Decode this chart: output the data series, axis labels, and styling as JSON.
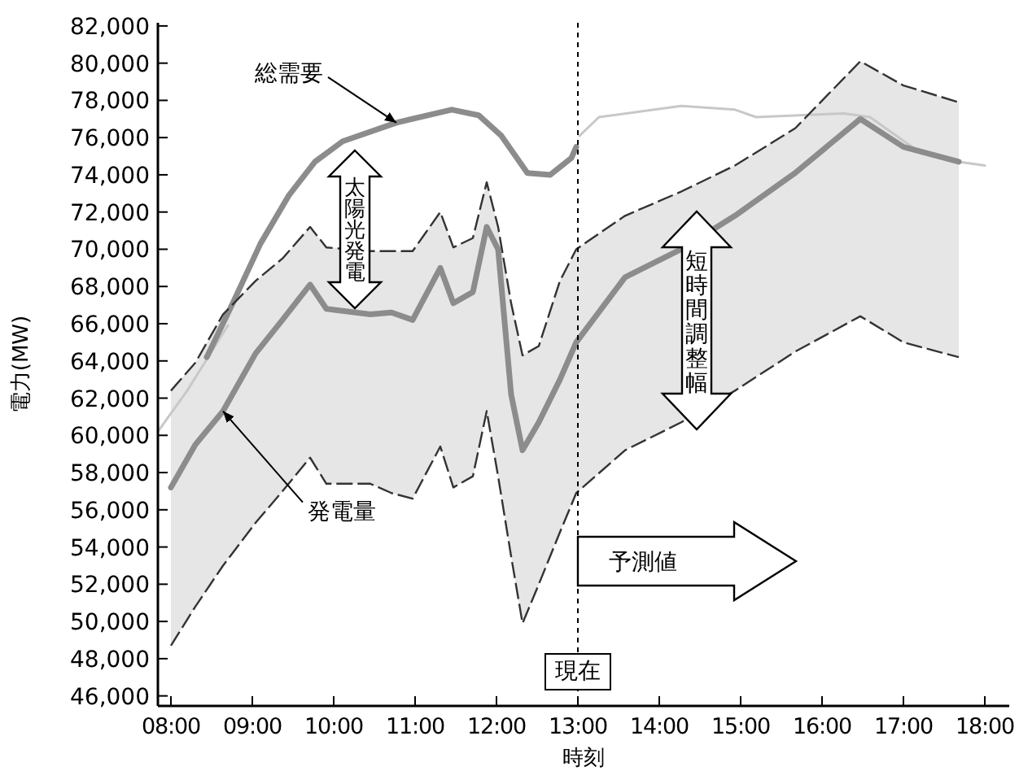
{
  "chart_data": {
    "type": "line",
    "xlabel": "時刻",
    "ylabel": "電力(MW)",
    "xlim": [
      7.84,
      18.3
    ],
    "ylim": [
      45460,
      82170
    ],
    "xticks": [
      {
        "value": 8,
        "label": "08:00"
      },
      {
        "value": 9,
        "label": "09:00"
      },
      {
        "value": 10,
        "label": "10:00"
      },
      {
        "value": 11,
        "label": "11:00"
      },
      {
        "value": 12,
        "label": "12:00"
      },
      {
        "value": 13,
        "label": "13:00"
      },
      {
        "value": 14,
        "label": "14:00"
      },
      {
        "value": 15,
        "label": "15:00"
      },
      {
        "value": 16,
        "label": "16:00"
      },
      {
        "value": 17,
        "label": "17:00"
      },
      {
        "value": 18,
        "label": "18:00"
      }
    ],
    "yticks": [
      {
        "value": 46000,
        "label": "46,000"
      },
      {
        "value": 48000,
        "label": "48,000"
      },
      {
        "value": 50000,
        "label": "50,000"
      },
      {
        "value": 52000,
        "label": "52,000"
      },
      {
        "value": 54000,
        "label": "54,000"
      },
      {
        "value": 56000,
        "label": "56,000"
      },
      {
        "value": 58000,
        "label": "58,000"
      },
      {
        "value": 60000,
        "label": "60,000"
      },
      {
        "value": 62000,
        "label": "62,000"
      },
      {
        "value": 64000,
        "label": "64,000"
      },
      {
        "value": 66000,
        "label": "66,000"
      },
      {
        "value": 68000,
        "label": "68,000"
      },
      {
        "value": 70000,
        "label": "70,000"
      },
      {
        "value": 72000,
        "label": "72,000"
      },
      {
        "value": 74000,
        "label": "74,000"
      },
      {
        "value": 76000,
        "label": "76,000"
      },
      {
        "value": 78000,
        "label": "78,000"
      },
      {
        "value": 80000,
        "label": "80,000"
      },
      {
        "value": 82000,
        "label": "82,000"
      }
    ],
    "grid": false,
    "series": [
      {
        "color": "#c8c8c8",
        "x": [
          7.84,
          8.2,
          8.7,
          9.1,
          13.02,
          13.26,
          14.27,
          14.93,
          15.19,
          16.27,
          16.59,
          17.14,
          17.68,
          18.0
        ],
        "values": [
          60200,
          62400,
          65900,
          null,
          76100,
          77100,
          77700,
          77500,
          77100,
          77300,
          77100,
          75400,
          74700,
          74500
        ]
      },
      {
        "name": "総需要",
        "color": "#8c8c8c",
        "x": [
          8.44,
          8.76,
          9.1,
          9.45,
          9.77,
          10.11,
          10.77,
          11.45,
          11.78,
          12.06,
          12.38,
          12.66,
          12.92,
          12.98
        ],
        "values": [
          64200,
          67100,
          70300,
          72900,
          74700,
          75800,
          76800,
          77500,
          77200,
          76100,
          74100,
          74000,
          74900,
          75500
        ]
      },
      {
        "name": "発電量",
        "color": "#8c8c8c",
        "x": [
          8.0,
          8.3,
          8.64,
          9.04,
          9.37,
          9.71,
          9.91,
          10.45,
          10.71,
          10.97,
          11.31,
          11.47,
          11.71,
          11.88,
          12.02,
          12.18,
          12.32,
          12.52,
          12.78,
          12.98,
          13.58,
          14.27,
          14.93,
          15.67,
          16.47,
          17.0,
          17.68
        ],
        "values": [
          57200,
          59500,
          61300,
          64400,
          66200,
          68100,
          66800,
          66500,
          66600,
          66200,
          69000,
          67100,
          67700,
          71200,
          70000,
          62200,
          59200,
          60700,
          63000,
          65000,
          68500,
          70000,
          71800,
          74100,
          77000,
          75500,
          74700
        ],
        "upper": [
          62400,
          63900,
          66500,
          68300,
          69500,
          71200,
          70100,
          69900,
          69900,
          69900,
          72000,
          70100,
          70600,
          73600,
          71200,
          67100,
          64300,
          64800,
          68300,
          70000,
          71800,
          73100,
          74500,
          76500,
          80100,
          78800,
          77900
        ],
        "lower": [
          48700,
          50800,
          53000,
          55300,
          57000,
          58800,
          57400,
          57400,
          56900,
          56600,
          59400,
          57200,
          57800,
          61300,
          57800,
          53500,
          49900,
          52000,
          54800,
          56900,
          59200,
          60700,
          62400,
          64500,
          66400,
          65000,
          64200
        ]
      },
      {
        "color": "#333333",
        "line_style": "dashed",
        "x": [
          8.0,
          8.3,
          8.64,
          9.04,
          9.37,
          9.71,
          9.91,
          10.45,
          10.71,
          10.97,
          11.31,
          11.47,
          11.71,
          11.88,
          12.02,
          12.18,
          12.32,
          12.52,
          12.78,
          12.98,
          13.58,
          14.27,
          14.93,
          15.67,
          16.47,
          17.0,
          17.68
        ],
        "values": [
          62400,
          63900,
          66500,
          68300,
          69500,
          71200,
          70100,
          69900,
          69900,
          69900,
          72000,
          70100,
          70600,
          73600,
          71200,
          67100,
          64300,
          64800,
          68300,
          70000,
          71800,
          73100,
          74500,
          76500,
          80100,
          78800,
          77900
        ]
      },
      {
        "color": "#333333",
        "line_style": "dashed",
        "x": [
          8.0,
          8.3,
          8.64,
          9.04,
          9.37,
          9.71,
          9.91,
          10.45,
          10.71,
          10.97,
          11.31,
          11.47,
          11.71,
          11.88,
          12.02,
          12.18,
          12.32,
          12.52,
          12.78,
          12.98,
          13.58,
          14.27,
          14.93,
          15.67,
          16.47,
          17.0,
          17.68
        ],
        "values": [
          48700,
          50800,
          53000,
          55300,
          57000,
          58800,
          57400,
          57400,
          56900,
          56600,
          59400,
          57200,
          57800,
          61300,
          57800,
          53500,
          49900,
          52000,
          54800,
          56900,
          59200,
          60700,
          62400,
          64500,
          66400,
          65000,
          64200
        ]
      }
    ],
    "ref_lines": [
      {
        "axis": "x",
        "value": 13,
        "label": "現在",
        "line_style": "dotted"
      }
    ],
    "annotations": [
      "太陽光発電",
      "短時間調整幅",
      "予測値"
    ]
  }
}
